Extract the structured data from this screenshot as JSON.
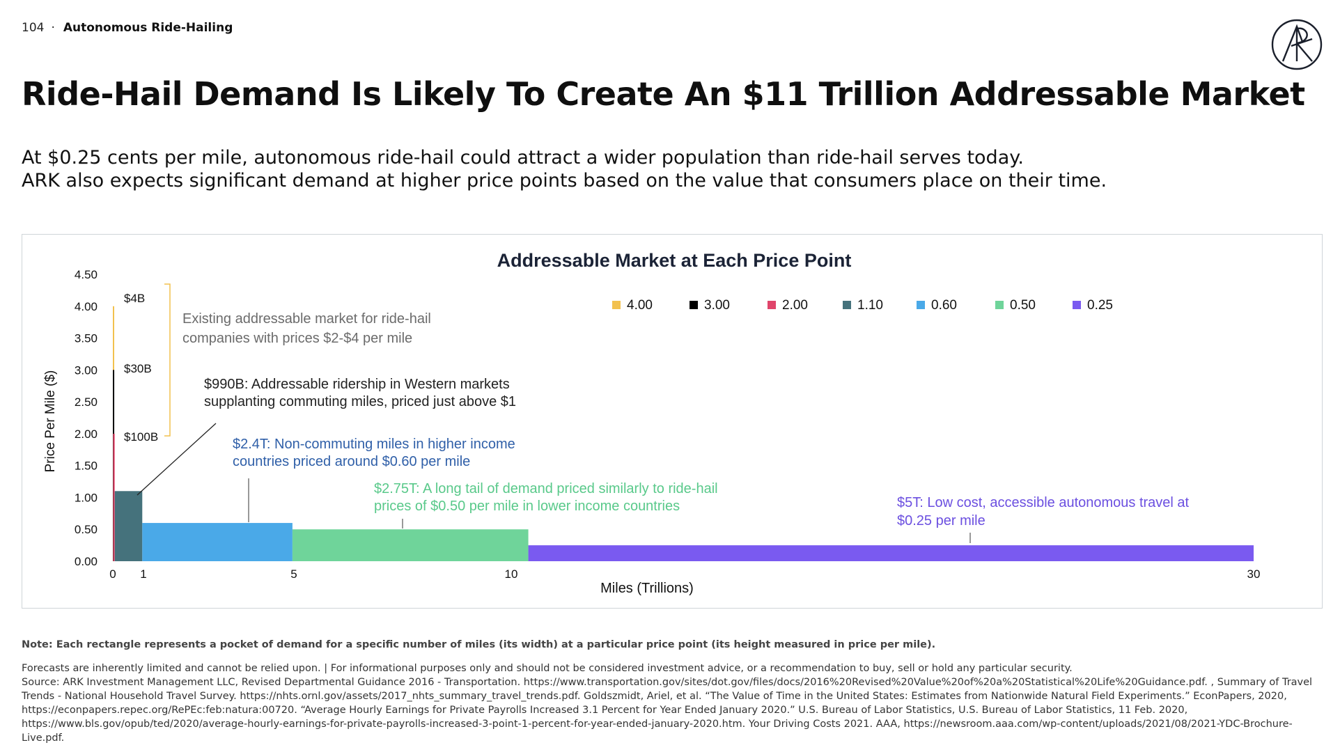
{
  "header": {
    "page_number": "104",
    "separator": "·",
    "section": "Autonomous Ride-Hailing",
    "logo_icon": "ark-logo-icon"
  },
  "title": "Ride-Hail Demand Is Likely To Create An $11 Trillion Addressable Market",
  "subtitle": {
    "line1": "At $0.25 cents per mile, autonomous ride-hail could attract a wider population than ride-hail serves today.",
    "line2": "ARK also expects significant demand at higher price points based on the value that consumers place on their time."
  },
  "chart_data": {
    "type": "bar",
    "title": "Addressable Market at Each Price Point",
    "xlabel": "Miles (Trillions)",
    "ylabel": "Price Per Mile ($)",
    "xlim": [
      0,
      30
    ],
    "ylim": [
      0,
      4.5
    ],
    "x_ticks": [
      "0",
      "1",
      "5",
      "10",
      "30"
    ],
    "x_tick_values": [
      0,
      1,
      5,
      10,
      30
    ],
    "y_ticks": [
      "0.00",
      "0.50",
      "1.00",
      "1.50",
      "2.00",
      "2.50",
      "3.00",
      "3.50",
      "4.00",
      "4.50"
    ],
    "y_tick_values": [
      0,
      0.5,
      1,
      1.5,
      2,
      2.5,
      3,
      3.5,
      4,
      4.5
    ],
    "legend_position": "top-right",
    "series": [
      {
        "name": "4.00",
        "price": 4.0,
        "miles": 0.001,
        "color": "#f2c14e"
      },
      {
        "name": "3.00",
        "price": 3.0,
        "miles": 0.01,
        "color": "#000000"
      },
      {
        "name": "2.00",
        "price": 2.0,
        "miles": 0.05,
        "color": "#e0456b"
      },
      {
        "name": "1.10",
        "price": 1.1,
        "miles": 0.9,
        "color": "#45727c"
      },
      {
        "name": "0.60",
        "price": 0.6,
        "miles": 4.0,
        "color": "#4aa9e8"
      },
      {
        "name": "0.50",
        "price": 0.5,
        "miles": 5.5,
        "color": "#6fd49a"
      },
      {
        "name": "0.25",
        "price": 0.25,
        "miles": 20.0,
        "color": "#7a5af0"
      }
    ],
    "value_labels": [
      "$4B",
      "$30B",
      "$100B"
    ],
    "annotations": {
      "existing_line1": "Existing addressable market for ride-hail",
      "existing_line2": "companies with prices $2-$4 per mile",
      "a990_line1": "$990B: Addressable ridership in Western markets",
      "a990_line2": "supplanting commuting miles, priced just above $1",
      "a24_line1": "$2.4T: Non-commuting miles in higher income",
      "a24_line2": "countries priced around $0.60 per mile",
      "a275_line1": "$2.75T:  A long tail of demand priced similarly to ride-hail",
      "a275_line2": "prices of $0.50 per mile in lower income countries",
      "a5_line1": "$5T: Low cost, accessible autonomous travel at",
      "a5_line2": "$0.25 per mile"
    },
    "annotation_colors": {
      "existing": "#6b6b6b",
      "a990": "#222222",
      "a24": "#2f5fa8",
      "a275": "#59c98a",
      "a5": "#6b4fe0"
    }
  },
  "footer": {
    "note": "Note: Each rectangle represents a pocket of demand for a specific number of miles (its width) at a particular price point (its height measured in price per mile).",
    "disclaimer": "Forecasts are inherently limited and cannot be relied upon. | For informational purposes only and should not be considered investment advice, or a recommendation to buy, sell or hold any particular security.",
    "source": "Source: ARK Investment Management LLC, Revised Departmental Guidance 2016 - Transportation. https://www.transportation.gov/sites/dot.gov/files/docs/2016%20Revised%20Value%20of%20a%20Statistical%20Life%20Guidance.pdf. , Summary of Travel Trends - National Household Travel Survey. https://nhts.ornl.gov/assets/2017_nhts_summary_travel_trends.pdf. Goldszmidt, Ariel, et al. “The Value of Time in the United States: Estimates from Nationwide Natural Field Experiments.” EconPapers, 2020, https://econpapers.repec.org/RePEc:feb:natura:00720. “Average Hourly Earnings for Private Payrolls Increased 3.1 Percent for Year Ended January 2020.” U.S. Bureau of Labor Statistics, U.S. Bureau of Labor Statistics, 11 Feb. 2020, https://www.bls.gov/opub/ted/2020/average-hourly-earnings-for-private-payrolls-increased-3-point-1-percent-for-year-ended-january-2020.htm. Your Driving Costs 2021. AAA, https://newsroom.aaa.com/wp-content/uploads/2021/08/2021-YDC-Brochure-Live.pdf."
  }
}
